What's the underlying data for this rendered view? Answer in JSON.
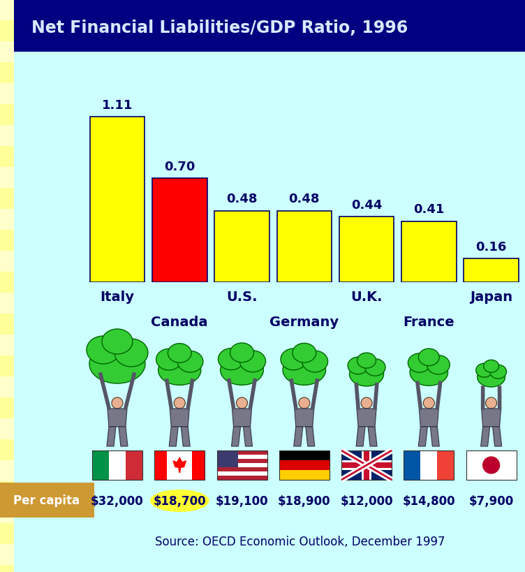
{
  "chart_data": {
    "type": "bar",
    "title": "Net Financial Liabilities/GDP Ratio, 1996",
    "categories": [
      "Italy",
      "Canada",
      "U.S.",
      "Germany",
      "U.K.",
      "France",
      "Japan"
    ],
    "values": [
      1.11,
      0.7,
      0.48,
      0.48,
      0.44,
      0.41,
      0.16
    ],
    "value_labels": [
      "1.11",
      "0.70",
      "0.48",
      "0.48",
      "0.44",
      "0.41",
      "0.16"
    ],
    "colors": [
      "#ffff00",
      "#ff0000",
      "#ffff00",
      "#ffff00",
      "#ffff00",
      "#ffff00",
      "#ffff00"
    ],
    "ylim": [
      0,
      1.2
    ],
    "data_labels": true,
    "tick_labels": "x",
    "per_capita_label": "Per capita",
    "per_capita": [
      32000,
      18700,
      19100,
      18900,
      12000,
      14800,
      7900
    ],
    "per_capita_labels": [
      "$32,000",
      "$18,700",
      "$19,100",
      "$18,900",
      "$12,000",
      "$14,800",
      "$7,900"
    ],
    "source": "Source: OECD Economic Outlook, December 1997"
  }
}
